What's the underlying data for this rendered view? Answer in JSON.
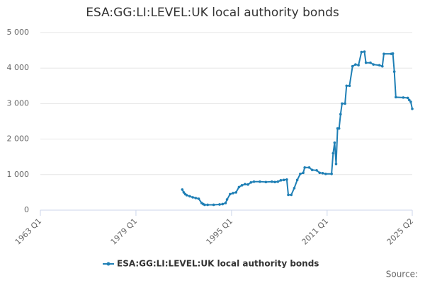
{
  "chart_data": {
    "type": "line",
    "title": "ESA:GG:LI:LEVEL:UK local authority bonds",
    "source": "Source:",
    "xlim": [
      "1963 Q1",
      "2025 Q2"
    ],
    "xticks": [
      "1963 Q1",
      "1979 Q1",
      "1995 Q1",
      "2011 Q1",
      "2025 Q2"
    ],
    "ylim": [
      0,
      5000
    ],
    "yticks": [
      0,
      {
        "value": 1000,
        "label": "1 000"
      },
      {
        "value": 2000,
        "label": "2 000"
      },
      {
        "value": 3000,
        "label": "3 000"
      },
      {
        "value": 4000,
        "label": "4 000"
      },
      {
        "value": 5000,
        "label": "5 000"
      }
    ],
    "grid": true,
    "legend": "bottom",
    "x": [
      "1986 Q4",
      "1987 Q1",
      "1987 Q2",
      "1987 Q3",
      "1988 Q1",
      "1988 Q3",
      "1989 Q1",
      "1989 Q3",
      "1990 Q1",
      "1990 Q2",
      "1990 Q3",
      "1991 Q1",
      "1992 Q1",
      "1993 Q1",
      "1993 Q3",
      "1994 Q1",
      "1994 Q2",
      "1994 Q4",
      "1995 Q2",
      "1995 Q4",
      "1996 Q2",
      "1996 Q4",
      "1997 Q2",
      "1997 Q4",
      "1998 Q2",
      "1998 Q4",
      "1999 Q4",
      "2000 Q4",
      "2001 Q4",
      "2002 Q2",
      "2002 Q4",
      "2003 Q2",
      "2003 Q4",
      "2004 Q2",
      "2004 Q3",
      "2005 Q1",
      "2005 Q3",
      "2006 Q1",
      "2006 Q3",
      "2007 Q1",
      "2007 Q2",
      "2008 Q1",
      "2008 Q3",
      "2009 Q2",
      "2009 Q4",
      "2010 Q2",
      "2010 Q4",
      "2011 Q4",
      "2012 Q1",
      "2012 Q2",
      "2012 Q3",
      "2012 Q4",
      "2013 Q1",
      "2013 Q2",
      "2013 Q3",
      "2014 Q1",
      "2014 Q2",
      "2014 Q4",
      "2015 Q2",
      "2015 Q4",
      "2016 Q2",
      "2016 Q4",
      "2017 Q2",
      "2017 Q3",
      "2018 Q2",
      "2018 Q4",
      "2019 Q4",
      "2020 Q2",
      "2020 Q3",
      "2021 Q4",
      "2022 Q1",
      "2022 Q2",
      "2022 Q3",
      "2023 Q4",
      "2024 Q3",
      "2024 Q4",
      "2025 Q1",
      "2025 Q2"
    ],
    "series": [
      {
        "name": "ESA:GG:LI:LEVEL:UK local authority bonds",
        "color": "#1f7fb5",
        "values": [
          580,
          500,
          450,
          420,
          390,
          360,
          340,
          320,
          200,
          170,
          150,
          150,
          150,
          160,
          170,
          200,
          300,
          450,
          480,
          500,
          650,
          700,
          730,
          720,
          780,
          800,
          800,
          790,
          800,
          790,
          800,
          840,
          850,
          860,
          430,
          430,
          620,
          850,
          1020,
          1050,
          1200,
          1200,
          1130,
          1120,
          1050,
          1040,
          1020,
          1020,
          1600,
          1900,
          1300,
          2300,
          2300,
          2700,
          3000,
          3000,
          3500,
          3500,
          4050,
          4100,
          4080,
          4450,
          4460,
          4150,
          4150,
          4100,
          4080,
          4050,
          4400,
          4400,
          4410,
          3900,
          3180,
          3170,
          3160,
          3100,
          3050,
          2850
        ]
      }
    ]
  }
}
